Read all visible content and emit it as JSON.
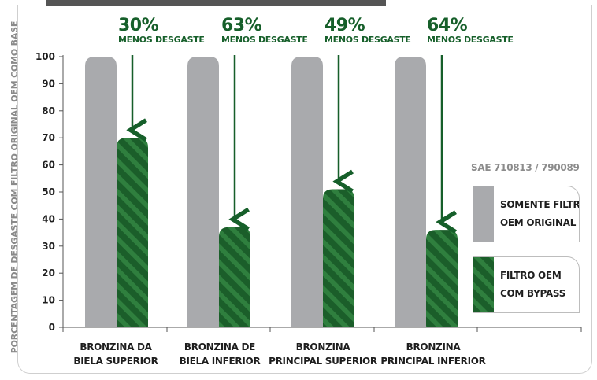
{
  "chart_data": {
    "type": "bar",
    "ylabel": "PORCENTAGEM DE DESGASTE COM FILTRO ORIGINAL OEM COMO BASE",
    "ylim": [
      0,
      100
    ],
    "yticks": [
      0,
      10,
      20,
      30,
      40,
      50,
      60,
      70,
      80,
      90,
      100
    ],
    "categories": [
      [
        "BRONZINA DA",
        "BIELA SUPERIOR"
      ],
      [
        "BRONZINA DE",
        "BIELA INFERIOR"
      ],
      [
        "BRONZINA",
        "PRINCIPAL SUPERIOR"
      ],
      [
        "BRONZINA",
        "PRINCIPAL INFERIOR"
      ]
    ],
    "series": [
      {
        "name": [
          "SOMENTE FILTRO",
          "OEM ORIGINAL"
        ],
        "values": [
          100,
          100,
          100,
          100
        ],
        "color": "#a9aaad"
      },
      {
        "name": [
          "FILTRO OEM",
          "COM BYPASS"
        ],
        "values": [
          70,
          37,
          51,
          36
        ],
        "color": "#1b5e2a",
        "stripe_color": "#2f7f3e"
      }
    ],
    "annotations": [
      {
        "percent": "30%",
        "text": "MENOS DESGASTE"
      },
      {
        "percent": "63%",
        "text": "MENOS DESGASTE"
      },
      {
        "percent": "49%",
        "text": "MENOS DESGASTE"
      },
      {
        "percent": "64%",
        "text": "MENOS DESGASTE"
      }
    ],
    "note": "SAE 710813 / 790089",
    "legend_position": "right",
    "grid": false
  }
}
